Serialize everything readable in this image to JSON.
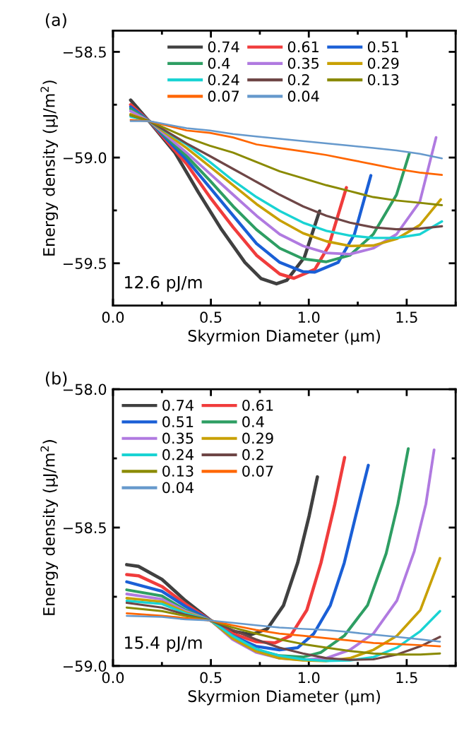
{
  "chart_data": [
    {
      "type": "line",
      "xlabel": "Skyrmion Diameter (μm)",
      "ylabel": "Energy density (μJ/m$^{2}$)",
      "annotations": [
        "(a)",
        "12.6 pJ/m"
      ],
      "xlim": [
        0,
        1.75
      ],
      "ylim": [
        -59.7,
        -58.4
      ],
      "xticks": [
        {
          "value": 0,
          "label": "0.0"
        },
        {
          "value": 0.5,
          "label": "0.5"
        },
        {
          "value": 1.0,
          "label": "1.0"
        },
        {
          "value": 1.5,
          "label": "1.5"
        }
      ],
      "yticks": [
        {
          "value": -59.5,
          "label": "−59.5"
        },
        {
          "value": -59.0,
          "label": "−59.0"
        },
        {
          "value": -58.5,
          "label": "−58.5"
        }
      ],
      "grid": false,
      "legend": "top",
      "marker": "none",
      "line_style": "solid",
      "series": [
        {
          "name": "0.74",
          "color": "#404040",
          "x": [
            0.09,
            0.186,
            0.317,
            0.436,
            0.555,
            0.674,
            0.757,
            0.835,
            0.888,
            0.977,
            1.055
          ],
          "values": [
            -58.728,
            -58.83,
            -58.977,
            -59.164,
            -59.341,
            -59.496,
            -59.573,
            -59.597,
            -59.58,
            -59.473,
            -59.253
          ]
        },
        {
          "name": "0.61",
          "color": "#f03c3c",
          "x": [
            0.09,
            0.186,
            0.376,
            0.495,
            0.614,
            0.733,
            0.852,
            0.924,
            1.031,
            1.102,
            1.192
          ],
          "values": [
            -58.75,
            -58.828,
            -59.03,
            -59.187,
            -59.33,
            -59.462,
            -59.551,
            -59.571,
            -59.529,
            -59.418,
            -59.142
          ]
        },
        {
          "name": "0.51",
          "color": "#1a5fd6",
          "x": [
            0.09,
            0.186,
            0.376,
            0.495,
            0.614,
            0.733,
            0.852,
            0.971,
            1.031,
            1.15,
            1.233,
            1.317
          ],
          "values": [
            -58.76,
            -58.828,
            -59.01,
            -59.142,
            -59.275,
            -59.407,
            -59.496,
            -59.54,
            -59.542,
            -59.496,
            -59.363,
            -59.085
          ]
        },
        {
          "name": "0.4",
          "color": "#2e9e63",
          "x": [
            0.09,
            0.186,
            0.376,
            0.495,
            0.614,
            0.733,
            0.852,
            0.971,
            1.09,
            1.21,
            1.329,
            1.448,
            1.513
          ],
          "values": [
            -58.77,
            -58.828,
            -58.993,
            -59.109,
            -59.231,
            -59.341,
            -59.429,
            -59.479,
            -59.493,
            -59.462,
            -59.363,
            -59.176,
            -58.982
          ]
        },
        {
          "name": "0.35",
          "color": "#b07ae0",
          "x": [
            0.09,
            0.186,
            0.376,
            0.495,
            0.614,
            0.733,
            0.852,
            0.971,
            1.09,
            1.21,
            1.329,
            1.448,
            1.567,
            1.65
          ],
          "values": [
            -58.78,
            -58.828,
            -58.977,
            -59.076,
            -59.176,
            -59.275,
            -59.363,
            -59.418,
            -59.451,
            -59.457,
            -59.429,
            -59.363,
            -59.209,
            -58.905
          ]
        },
        {
          "name": "0.29",
          "color": "#c8a000",
          "x": [
            0.09,
            0.186,
            0.376,
            0.495,
            0.614,
            0.733,
            0.852,
            0.971,
            1.09,
            1.21,
            1.329,
            1.448,
            1.567,
            1.674
          ],
          "values": [
            -58.795,
            -58.828,
            -58.955,
            -59.043,
            -59.131,
            -59.22,
            -59.297,
            -59.358,
            -59.396,
            -59.418,
            -59.416,
            -59.385,
            -59.319,
            -59.198
          ]
        },
        {
          "name": "0.24",
          "color": "#19d3d3",
          "x": [
            0.09,
            0.186,
            0.376,
            0.495,
            0.614,
            0.733,
            0.852,
            0.971,
            1.09,
            1.21,
            1.329,
            1.448,
            1.567,
            1.68
          ],
          "values": [
            -58.806,
            -58.828,
            -58.938,
            -59.021,
            -59.109,
            -59.187,
            -59.253,
            -59.308,
            -59.347,
            -59.369,
            -59.38,
            -59.38,
            -59.363,
            -59.302
          ]
        },
        {
          "name": "0.2",
          "color": "#6e4646",
          "x": [
            0.09,
            0.186,
            0.376,
            0.495,
            0.614,
            0.733,
            0.852,
            0.971,
            1.09,
            1.21,
            1.329,
            1.448,
            1.567,
            1.68
          ],
          "values": [
            -58.8,
            -58.828,
            -58.933,
            -58.993,
            -59.054,
            -59.115,
            -59.176,
            -59.231,
            -59.275,
            -59.308,
            -59.33,
            -59.339,
            -59.336,
            -59.325
          ]
        },
        {
          "name": "0.13",
          "color": "#8a8a00",
          "x": [
            0.09,
            0.186,
            0.376,
            0.495,
            0.614,
            0.733,
            0.852,
            0.971,
            1.09,
            1.21,
            1.329,
            1.448,
            1.567,
            1.68
          ],
          "values": [
            -58.8,
            -58.828,
            -58.905,
            -58.944,
            -58.977,
            -59.021,
            -59.065,
            -59.098,
            -59.131,
            -59.159,
            -59.187,
            -59.203,
            -59.214,
            -59.225
          ]
        },
        {
          "name": "0.07",
          "color": "#ff6600",
          "x": [
            0.09,
            0.186,
            0.376,
            0.495,
            0.614,
            0.733,
            0.852,
            0.971,
            1.09,
            1.21,
            1.329,
            1.448,
            1.567,
            1.68
          ],
          "values": [
            -58.822,
            -58.828,
            -58.872,
            -58.883,
            -58.905,
            -58.938,
            -58.955,
            -58.971,
            -58.988,
            -59.01,
            -59.032,
            -59.054,
            -59.071,
            -59.082
          ]
        },
        {
          "name": "0.04",
          "color": "#6699cc",
          "x": [
            0.09,
            0.186,
            0.376,
            0.495,
            0.614,
            0.733,
            0.852,
            0.971,
            1.09,
            1.21,
            1.329,
            1.448,
            1.567,
            1.68
          ],
          "values": [
            -58.828,
            -58.828,
            -58.861,
            -58.872,
            -58.889,
            -58.9,
            -58.911,
            -58.922,
            -58.933,
            -58.944,
            -58.955,
            -58.966,
            -58.982,
            -59.004
          ]
        }
      ]
    },
    {
      "type": "line",
      "xlabel": "Skyrmion Diameter (μm)",
      "ylabel": "Energy density (μJ/m$^{2}$)",
      "annotations": [
        "(b)",
        "15.4 pJ/m"
      ],
      "xlim": [
        0,
        1.75
      ],
      "ylim": [
        -59.0,
        -58.0
      ],
      "xticks": [
        {
          "value": 0,
          "label": "0.0"
        },
        {
          "value": 0.5,
          "label": "0.5"
        },
        {
          "value": 1.0,
          "label": "1.0"
        },
        {
          "value": 1.5,
          "label": "1.5"
        }
      ],
      "yticks": [
        {
          "value": -59.0,
          "label": "−59.0"
        },
        {
          "value": -58.5,
          "label": "−58.5"
        },
        {
          "value": -58.0,
          "label": "−58.0"
        }
      ],
      "grid": false,
      "legend": "top left",
      "marker": "none",
      "line_style": "solid",
      "series": [
        {
          "name": "0.74",
          "color": "#404040",
          "x": [
            0.07,
            0.13,
            0.25,
            0.37,
            0.5,
            0.61,
            0.705,
            0.788,
            0.871,
            0.943,
            1.002,
            1.044
          ],
          "values": [
            -58.634,
            -58.64,
            -58.687,
            -58.764,
            -58.836,
            -58.874,
            -58.887,
            -58.866,
            -58.781,
            -58.628,
            -58.457,
            -58.317
          ]
        },
        {
          "name": "0.61",
          "color": "#f03c3c",
          "x": [
            0.07,
            0.13,
            0.25,
            0.37,
            0.5,
            0.61,
            0.73,
            0.826,
            0.907,
            0.99,
            1.062,
            1.133,
            1.183
          ],
          "values": [
            -58.67,
            -58.674,
            -58.713,
            -58.776,
            -58.836,
            -58.883,
            -58.912,
            -58.917,
            -58.891,
            -58.798,
            -58.628,
            -58.415,
            -58.247
          ]
        },
        {
          "name": "0.51",
          "color": "#1a5fd6",
          "x": [
            0.07,
            0.25,
            0.37,
            0.5,
            0.61,
            0.73,
            0.85,
            0.943,
            1.026,
            1.11,
            1.181,
            1.24,
            1.304
          ],
          "values": [
            -58.696,
            -58.73,
            -58.785,
            -58.836,
            -58.891,
            -58.929,
            -58.942,
            -58.934,
            -58.883,
            -58.781,
            -58.628,
            -58.457,
            -58.275
          ]
        },
        {
          "name": "0.4",
          "color": "#2e9e63",
          "x": [
            0.07,
            0.25,
            0.37,
            0.5,
            0.61,
            0.73,
            0.85,
            0.97,
            1.062,
            1.181,
            1.3,
            1.395,
            1.455,
            1.508
          ],
          "values": [
            -58.725,
            -58.747,
            -58.798,
            -58.836,
            -58.9,
            -58.942,
            -58.963,
            -58.968,
            -58.951,
            -58.891,
            -58.781,
            -58.594,
            -58.415,
            -58.215
          ]
        },
        {
          "name": "0.35",
          "color": "#b07ae0",
          "x": [
            0.07,
            0.25,
            0.37,
            0.5,
            0.61,
            0.73,
            0.85,
            0.97,
            1.09,
            1.21,
            1.33,
            1.45,
            1.539,
            1.598,
            1.64
          ],
          "values": [
            -58.74,
            -58.759,
            -58.802,
            -58.836,
            -58.904,
            -58.951,
            -58.972,
            -58.978,
            -58.972,
            -58.942,
            -58.883,
            -58.764,
            -58.585,
            -58.415,
            -58.219
          ]
        },
        {
          "name": "0.29",
          "color": "#c8a000",
          "x": [
            0.07,
            0.25,
            0.37,
            0.5,
            0.61,
            0.73,
            0.85,
            0.97,
            1.09,
            1.21,
            1.33,
            1.45,
            1.57,
            1.67
          ],
          "values": [
            -58.755,
            -58.768,
            -58.806,
            -58.836,
            -58.9,
            -58.947,
            -58.972,
            -58.98,
            -58.982,
            -58.972,
            -58.942,
            -58.891,
            -58.798,
            -58.611
          ]
        },
        {
          "name": "0.24",
          "color": "#19d3d3",
          "x": [
            0.07,
            0.25,
            0.37,
            0.5,
            0.61,
            0.73,
            0.85,
            0.97,
            1.09,
            1.21,
            1.33,
            1.45,
            1.57,
            1.67
          ],
          "values": [
            -58.765,
            -58.776,
            -58.81,
            -58.836,
            -58.891,
            -58.938,
            -58.963,
            -58.976,
            -58.982,
            -58.98,
            -58.968,
            -58.934,
            -58.874,
            -58.802
          ]
        },
        {
          "name": "0.2",
          "color": "#6e4646",
          "x": [
            0.07,
            0.25,
            0.37,
            0.5,
            0.61,
            0.73,
            0.85,
            0.97,
            1.09,
            1.21,
            1.33,
            1.45,
            1.57,
            1.67
          ],
          "values": [
            -58.772,
            -58.789,
            -58.815,
            -58.836,
            -58.87,
            -58.904,
            -58.934,
            -58.955,
            -58.972,
            -58.978,
            -58.976,
            -58.959,
            -58.929,
            -58.895
          ]
        },
        {
          "name": "0.13",
          "color": "#8a8a00",
          "x": [
            0.07,
            0.25,
            0.37,
            0.5,
            0.61,
            0.73,
            0.85,
            0.97,
            1.09,
            1.21,
            1.33,
            1.45,
            1.57,
            1.67
          ],
          "values": [
            -58.789,
            -58.802,
            -58.819,
            -58.836,
            -58.861,
            -58.883,
            -58.904,
            -58.921,
            -58.934,
            -58.946,
            -58.955,
            -58.959,
            -58.959,
            -58.955
          ]
        },
        {
          "name": "0.07",
          "color": "#ff6600",
          "x": [
            0.07,
            0.25,
            0.37,
            0.5,
            0.61,
            0.73,
            0.85,
            0.97,
            1.09,
            1.21,
            1.33,
            1.45,
            1.57,
            1.67
          ],
          "values": [
            -58.81,
            -58.819,
            -58.827,
            -58.836,
            -58.853,
            -58.87,
            -58.883,
            -58.891,
            -58.9,
            -58.908,
            -58.917,
            -58.921,
            -58.925,
            -58.929
          ]
        },
        {
          "name": "0.04",
          "color": "#6699cc",
          "x": [
            0.07,
            0.25,
            0.37,
            0.5,
            0.61,
            0.73,
            0.85,
            0.97,
            1.09,
            1.21,
            1.33,
            1.45,
            1.57,
            1.67
          ],
          "values": [
            -58.819,
            -58.823,
            -58.832,
            -58.836,
            -58.844,
            -58.853,
            -58.861,
            -58.866,
            -58.87,
            -58.878,
            -58.887,
            -58.895,
            -58.904,
            -58.912
          ]
        }
      ]
    }
  ]
}
